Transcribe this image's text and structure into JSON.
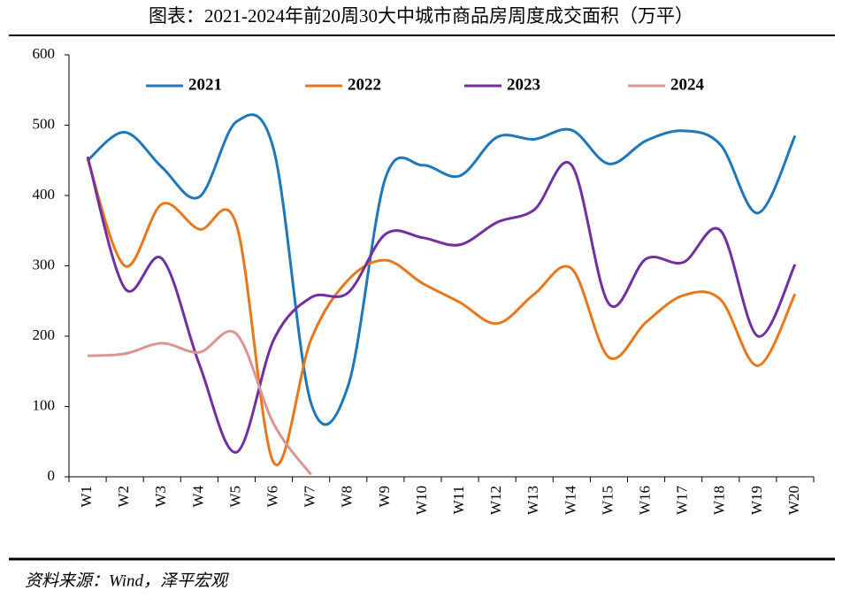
{
  "chart_data": {
    "type": "line",
    "title": "图表：2021-2024年前20周30大中城市商品房周度成交面积（万平）",
    "source": "资料来源：Wind，泽平宏观",
    "categories": [
      "W1",
      "W2",
      "W3",
      "W4",
      "W5",
      "W6",
      "W7",
      "W8",
      "W9",
      "W10",
      "W11",
      "W12",
      "W13",
      "W14",
      "W15",
      "W16",
      "W17",
      "W18",
      "W19",
      "W20"
    ],
    "series": [
      {
        "name": "2021",
        "color": "#1f77b9",
        "values": [
          450,
          490,
          440,
          398,
          505,
          465,
          105,
          130,
          425,
          443,
          428,
          483,
          480,
          493,
          445,
          478,
          492,
          472,
          375,
          485
        ]
      },
      {
        "name": "2022",
        "color": "#e8771c",
        "values": [
          452,
          300,
          388,
          352,
          358,
          20,
          195,
          280,
          308,
          275,
          248,
          218,
          260,
          296,
          170,
          220,
          258,
          252,
          158,
          260
        ]
      },
      {
        "name": "2023",
        "color": "#7030a0",
        "values": [
          455,
          268,
          310,
          160,
          35,
          195,
          255,
          262,
          345,
          340,
          330,
          362,
          380,
          443,
          246,
          310,
          305,
          350,
          200,
          302
        ]
      },
      {
        "name": "2024",
        "color": "#d99694",
        "values": [
          172,
          175,
          190,
          177,
          203,
          75,
          3,
          null,
          null,
          null,
          null,
          null,
          null,
          null,
          null,
          null,
          null,
          null,
          null,
          null
        ]
      }
    ],
    "ylim": [
      0,
      600
    ],
    "yticks": [
      0,
      100,
      200,
      300,
      400,
      500,
      600
    ],
    "smooth": true,
    "legend": "top"
  }
}
